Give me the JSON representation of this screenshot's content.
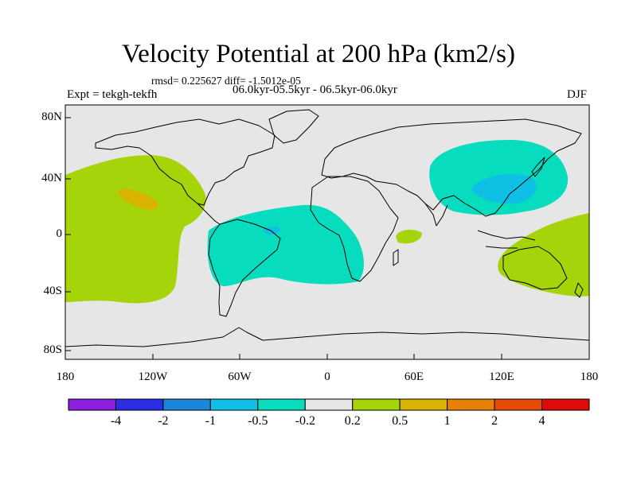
{
  "header": {
    "title": "Velocity Potential at 200 hPa (km2/s)",
    "stats": "rmsd= 0.225627 diff= -1.5012e-05",
    "experiment": "Expt = tekgh-tekfh",
    "period": "06.0kyr-05.5kyr - 06.5kyr-06.0kyr",
    "season": "DJF"
  },
  "map": {
    "lat_labels": [
      "80N",
      "40N",
      "0",
      "40S",
      "80S"
    ],
    "lon_labels": [
      "180",
      "120W",
      "60W",
      "0",
      "60E",
      "120E",
      "180"
    ],
    "colors": {
      "background": "#e6e6e6",
      "coast": "#000000",
      "lv_pos_0_2": "#a6d40a",
      "lv_pos_0_5": "#d8b400",
      "lv_neg_0_2": "#08dcbe",
      "lv_neg_0_5": "#10c0e4",
      "lv_neg_1": "#1a86d8"
    }
  },
  "colorbar": {
    "colors": [
      "#8a1fe0",
      "#2c2ee6",
      "#1a86d8",
      "#10c0e4",
      "#08dcbe",
      "#e6e6e6",
      "#a6d40a",
      "#d8b400",
      "#e88008",
      "#e44c08",
      "#e00a0a"
    ],
    "labels": [
      "-4",
      "-2",
      "-1",
      "-0.5",
      "-0.2",
      "0.2",
      "0.5",
      "1",
      "2",
      "4"
    ]
  }
}
